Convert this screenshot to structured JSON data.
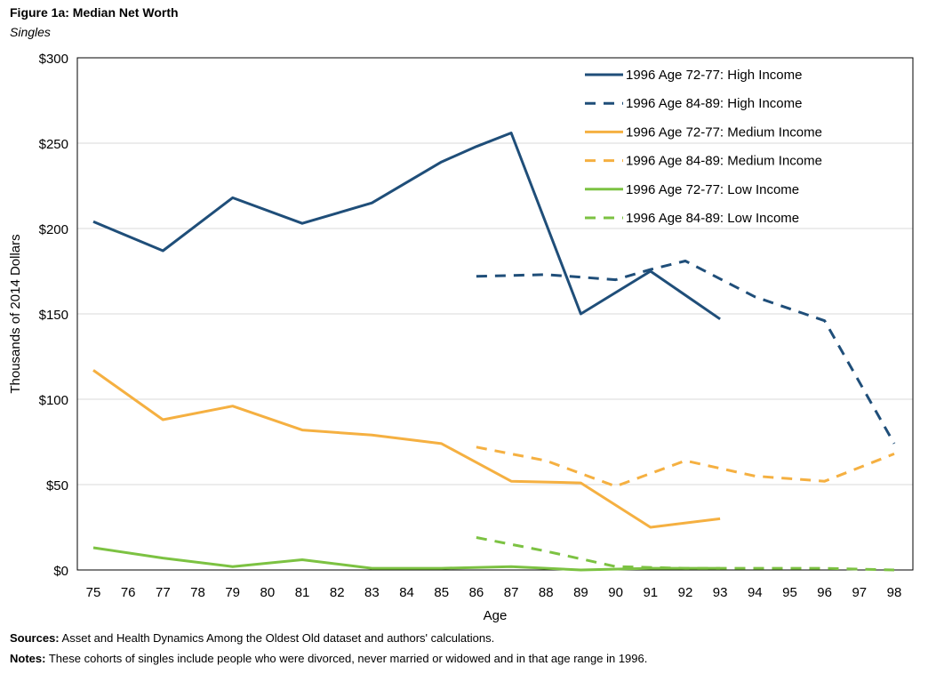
{
  "figure": {
    "title": "Figure 1a: Median Net Worth",
    "subtitle": "Singles",
    "sources_label": "Sources:",
    "sources_text": "Asset and Health Dynamics Among the Oldest Old dataset and authors' calculations.",
    "notes_label": "Notes:",
    "notes_text": "These cohorts of singles include people who were divorced, never married or widowed and in that age range in 1996."
  },
  "colors": {
    "high": "#1f4e79",
    "medium": "#f5b041",
    "low": "#7cc242"
  },
  "chart_data": {
    "type": "line",
    "xlabel": "Age",
    "ylabel": "Thousands of 2014 Dollars",
    "x": [
      75,
      76,
      77,
      78,
      79,
      80,
      81,
      82,
      83,
      84,
      85,
      86,
      87,
      88,
      89,
      90,
      91,
      92,
      93,
      94,
      95,
      96,
      97,
      98
    ],
    "ylim": [
      0,
      300
    ],
    "yticks": [
      0,
      50,
      100,
      150,
      200,
      250,
      300
    ],
    "ytick_labels": [
      "$0",
      "$50",
      "$100",
      "$150",
      "$200",
      "$250",
      "$300"
    ],
    "grid": true,
    "legend_position": "top-right",
    "series": [
      {
        "name": "1996 Age 72-77: High Income",
        "group": "high",
        "dashed": false,
        "points": [
          [
            75,
            204
          ],
          [
            77,
            187
          ],
          [
            79,
            218
          ],
          [
            81,
            203
          ],
          [
            83,
            215
          ],
          [
            85,
            239
          ],
          [
            86,
            248
          ],
          [
            87,
            256
          ],
          [
            89,
            150
          ],
          [
            91,
            175
          ],
          [
            93,
            147
          ]
        ]
      },
      {
        "name": "1996 Age 84-89: High Income",
        "group": "high",
        "dashed": true,
        "points": [
          [
            86,
            172
          ],
          [
            88,
            173
          ],
          [
            90,
            170
          ],
          [
            91,
            176
          ],
          [
            92,
            181
          ],
          [
            94,
            160
          ],
          [
            96,
            146
          ],
          [
            98,
            74
          ]
        ]
      },
      {
        "name": "1996 Age 72-77: Medium Income",
        "group": "medium",
        "dashed": false,
        "points": [
          [
            75,
            117
          ],
          [
            77,
            88
          ],
          [
            79,
            96
          ],
          [
            81,
            82
          ],
          [
            83,
            79
          ],
          [
            85,
            74
          ],
          [
            87,
            52
          ],
          [
            89,
            51
          ],
          [
            91,
            25
          ],
          [
            93,
            30
          ]
        ]
      },
      {
        "name": "1996 Age 84-89: Medium Income",
        "group": "medium",
        "dashed": true,
        "points": [
          [
            86,
            72
          ],
          [
            88,
            64
          ],
          [
            90,
            49
          ],
          [
            92,
            64
          ],
          [
            94,
            55
          ],
          [
            96,
            52
          ],
          [
            98,
            68
          ]
        ]
      },
      {
        "name": "1996 Age 72-77: Low Income",
        "group": "low",
        "dashed": false,
        "points": [
          [
            75,
            13
          ],
          [
            77,
            7
          ],
          [
            79,
            2
          ],
          [
            81,
            6
          ],
          [
            83,
            1
          ],
          [
            85,
            1
          ],
          [
            87,
            2
          ],
          [
            89,
            0
          ],
          [
            91,
            1
          ],
          [
            93,
            1
          ]
        ]
      },
      {
        "name": "1996 Age 84-89: Low Income",
        "group": "low",
        "dashed": true,
        "points": [
          [
            86,
            19
          ],
          [
            88,
            11
          ],
          [
            90,
            2
          ],
          [
            92,
            1
          ],
          [
            94,
            1
          ],
          [
            96,
            1
          ],
          [
            98,
            0
          ]
        ]
      }
    ]
  }
}
